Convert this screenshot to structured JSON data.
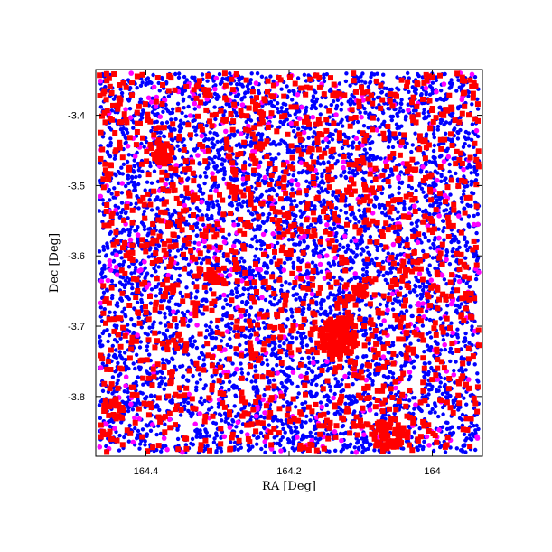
{
  "chart_data": {
    "type": "scatter",
    "title": "",
    "xlabel": "RA [Deg]",
    "ylabel": "Dec [Deg]",
    "xlim": [
      164.47,
      163.93
    ],
    "ylim": [
      -3.885,
      -3.335
    ],
    "x_inverted": true,
    "grid": false,
    "legend": "none",
    "xticks": [
      {
        "value": 164.4,
        "label": "164.4"
      },
      {
        "value": 164.2,
        "label": "164.2"
      },
      {
        "value": 164.0,
        "label": "164"
      }
    ],
    "yticks": [
      {
        "value": -3.4,
        "label": "-3.4"
      },
      {
        "value": -3.5,
        "label": "-3.5"
      },
      {
        "value": -3.6,
        "label": "-3.6"
      },
      {
        "value": -3.7,
        "label": "-3.7"
      },
      {
        "value": -3.8,
        "label": "-3.8"
      }
    ],
    "series": [
      {
        "color": "#0000ff",
        "marker": "circle",
        "fill_region": {
          "ra": [
            164.465,
            163.935
          ],
          "dec": [
            -3.88,
            -3.34
          ]
        },
        "approx_count": 5200
      },
      {
        "color": "#ff00ff",
        "marker": "circle",
        "fill_region": {
          "ra": [
            164.465,
            163.935
          ],
          "dec": [
            -3.88,
            -3.34
          ]
        },
        "approx_count": 450
      },
      {
        "color": "#ff0000",
        "marker": "square",
        "fill_region": {
          "ra": [
            164.465,
            163.935
          ],
          "dec": [
            -3.88,
            -3.34
          ]
        },
        "approx_count": 1500,
        "clusters": [
          {
            "ra": 164.13,
            "dec": -3.715,
            "radius": 0.028,
            "count": 140
          },
          {
            "ra": 164.375,
            "dec": -3.456,
            "radius": 0.015,
            "count": 40
          },
          {
            "ra": 164.06,
            "dec": -3.853,
            "radius": 0.022,
            "count": 70
          },
          {
            "ra": 164.305,
            "dec": -3.627,
            "radius": 0.012,
            "count": 20
          },
          {
            "ra": 164.1,
            "dec": -3.65,
            "radius": 0.01,
            "count": 18
          },
          {
            "ra": 164.445,
            "dec": -3.82,
            "radius": 0.014,
            "count": 25
          }
        ]
      }
    ]
  }
}
